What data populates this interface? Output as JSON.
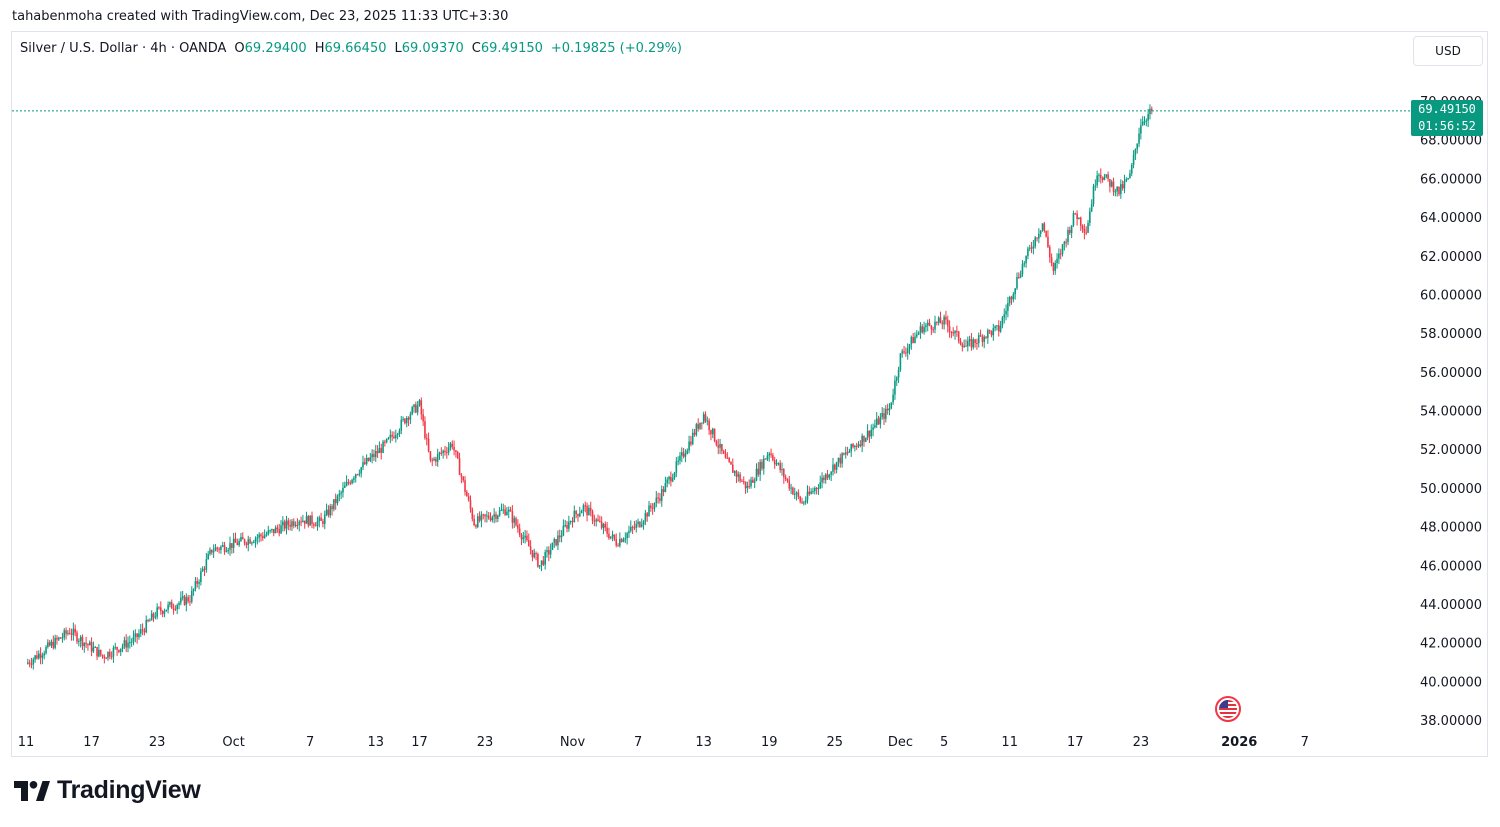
{
  "header": {
    "attribution": "tahabenmoha created with TradingView.com, Dec 23, 2025 11:33 UTC+3:30"
  },
  "symbol": {
    "name": "Silver / U.S. Dollar · 4h · OANDA",
    "open_label": "O",
    "open": "69.29400",
    "high_label": "H",
    "high": "69.66450",
    "low_label": "L",
    "low": "69.09370",
    "close_label": "C",
    "close": "69.49150",
    "change": "+0.19825 (+0.29%)"
  },
  "currency_button": "USD",
  "price_tag": {
    "price": "69.49150",
    "countdown": "01:56:52"
  },
  "brand": {
    "name": "TradingView"
  },
  "colors": {
    "up": "#089981",
    "down": "#f23645",
    "grid": "#f0f3fa",
    "text": "#131722"
  },
  "icons": {
    "event_flag": "us-flag-icon",
    "logo": "tradingview-logo-icon"
  },
  "chart_data": {
    "type": "candlestick",
    "interval": "4h",
    "ylim": [
      38,
      70
    ],
    "y_ticks": [
      "70.00000",
      "68.00000",
      "66.00000",
      "64.00000",
      "62.00000",
      "60.00000",
      "58.00000",
      "56.00000",
      "54.00000",
      "52.00000",
      "50.00000",
      "48.00000",
      "46.00000",
      "44.00000",
      "42.00000",
      "40.00000",
      "38.00000"
    ],
    "x_ticks": [
      {
        "label": "11",
        "day": 11
      },
      {
        "label": "17",
        "day": 17
      },
      {
        "label": "23",
        "day": 23
      },
      {
        "label": "Oct",
        "day": 30
      },
      {
        "label": "7",
        "day": 37
      },
      {
        "label": "13",
        "day": 43
      },
      {
        "label": "17",
        "day": 47
      },
      {
        "label": "23",
        "day": 53
      },
      {
        "label": "Nov",
        "day": 61
      },
      {
        "label": "7",
        "day": 67
      },
      {
        "label": "13",
        "day": 73
      },
      {
        "label": "19",
        "day": 79
      },
      {
        "label": "25",
        "day": 85
      },
      {
        "label": "Dec",
        "day": 91
      },
      {
        "label": "5",
        "day": 95
      },
      {
        "label": "11",
        "day": 101
      },
      {
        "label": "17",
        "day": 107
      },
      {
        "label": "23",
        "day": 113
      },
      {
        "label": "2026",
        "day": 122
      },
      {
        "label": "7",
        "day": 128
      }
    ],
    "last_price": 69.4915,
    "path": [
      [
        11,
        40.9
      ],
      [
        15,
        42.6
      ],
      [
        18,
        41.3
      ],
      [
        21,
        42.2
      ],
      [
        23,
        43.6
      ],
      [
        26,
        44.3
      ],
      [
        28,
        46.8
      ],
      [
        30,
        47.1
      ],
      [
        33,
        47.6
      ],
      [
        36,
        48.4
      ],
      [
        38,
        48.2
      ],
      [
        41,
        50.7
      ],
      [
        44,
        52.3
      ],
      [
        46,
        53.8
      ],
      [
        47,
        54.3
      ],
      [
        48,
        51.3
      ],
      [
        50,
        52.3
      ],
      [
        52,
        48.2
      ],
      [
        55,
        48.9
      ],
      [
        58,
        46.0
      ],
      [
        61,
        48.5
      ],
      [
        62,
        49.0
      ],
      [
        65,
        47.2
      ],
      [
        67,
        48.1
      ],
      [
        69,
        49.6
      ],
      [
        71,
        51.6
      ],
      [
        73,
        53.8
      ],
      [
        75,
        51.4
      ],
      [
        77,
        50.0
      ],
      [
        79,
        51.9
      ],
      [
        81,
        50.0
      ],
      [
        82,
        49.2
      ],
      [
        85,
        51.2
      ],
      [
        88,
        52.8
      ],
      [
        90,
        54.1
      ],
      [
        91,
        56.8
      ],
      [
        93,
        58.3
      ],
      [
        95,
        58.6
      ],
      [
        97,
        57.3
      ],
      [
        99,
        58.0
      ],
      [
        100,
        58.2
      ],
      [
        102,
        61.3
      ],
      [
        104,
        63.7
      ],
      [
        105,
        61.2
      ],
      [
        107,
        64.2
      ],
      [
        108,
        63.3
      ],
      [
        109,
        66.4
      ],
      [
        111,
        65.3
      ],
      [
        112,
        66.1
      ],
      [
        113,
        68.9
      ],
      [
        114,
        69.49
      ]
    ]
  }
}
